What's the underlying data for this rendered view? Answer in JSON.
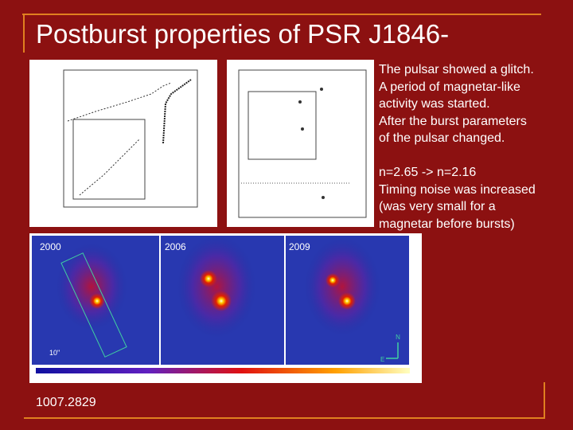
{
  "slide": {
    "title": "Postburst properties of PSR J1846-",
    "paragraphs": [
      [
        "The pulsar showed a glitch.",
        "A period of magnetar-like",
        "activity was started.",
        "After the burst parameters",
        "of the pulsar changed."
      ],
      [
        "n=2.65 -> n=2.16",
        "Timing noise was increased",
        "(was very small for a",
        "magnetar before bursts)"
      ]
    ],
    "images": {
      "panels": [
        "2000",
        "2006",
        "2009"
      ],
      "scale": "10\"",
      "compass": [
        "N",
        "E"
      ]
    },
    "reference": "1007.2829"
  }
}
